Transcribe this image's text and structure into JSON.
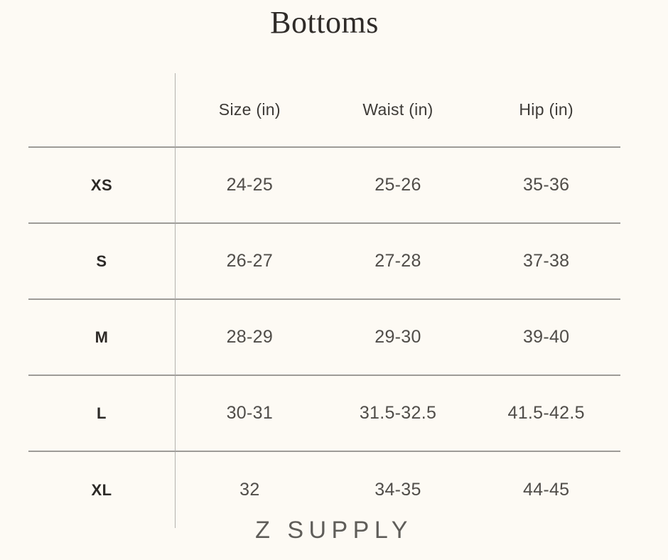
{
  "page": {
    "title": "Bottoms",
    "brand": "Z SUPPLY"
  },
  "colors": {
    "background": "#fdfaf4",
    "horizontal_rule": "#9d9b97",
    "vertical_rule": "#b3b1ad",
    "title_text": "#2f2b28",
    "cell_text": "#504d49",
    "brand_text": "#5f5d59"
  },
  "chart_data": {
    "type": "table",
    "title": "Bottoms",
    "columns": [
      "Size (in)",
      "Waist (in)",
      "Hip (in)"
    ],
    "row_labels": [
      "XS",
      "S",
      "M",
      "L",
      "XL"
    ],
    "rows": [
      {
        "label": "XS",
        "size": "24-25",
        "waist": "25-26",
        "hip": "35-36"
      },
      {
        "label": "S",
        "size": "26-27",
        "waist": "27-28",
        "hip": "37-38"
      },
      {
        "label": "M",
        "size": "28-29",
        "waist": "29-30",
        "hip": "39-40"
      },
      {
        "label": "L",
        "size": "30-31",
        "waist": "31.5-32.5",
        "hip": "41.5-42.5"
      },
      {
        "label": "XL",
        "size": "32",
        "waist": "34-35",
        "hip": "44-45"
      }
    ],
    "layout": {
      "grid": "horizontal rules between rows, single vertical rule after label column",
      "footer_brand": "Z SUPPLY"
    }
  }
}
